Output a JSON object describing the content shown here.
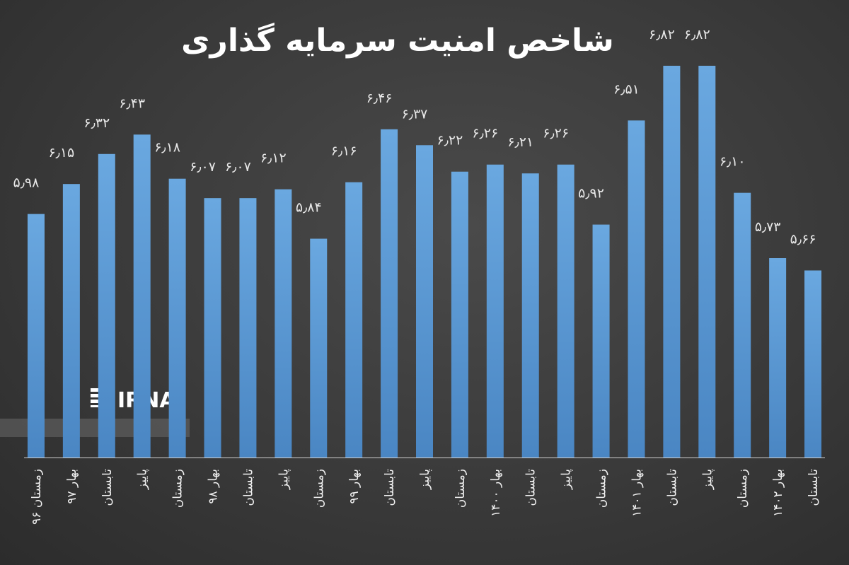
{
  "chart_data": {
    "type": "bar",
    "title": "شاخص امنیت سرمایه گذاری",
    "categories": [
      "زمستان ۹۶",
      "بهار ۹۷",
      "تابستان",
      "پاییز",
      "زمستان",
      "بهار ۹۸",
      "تابستان",
      "پاییز",
      "زمستان",
      "بهار ۹۹",
      "تابستان",
      "پاییز",
      "زمستان",
      "بهار ۱۴۰۰",
      "تابستان",
      "پاییز",
      "زمستان",
      "بهار ۱۴۰۱",
      "تابستان",
      "پاییز",
      "زمستان",
      "بهار ۱۴۰۲",
      "تابستان"
    ],
    "values": [
      5.98,
      6.15,
      6.32,
      6.43,
      6.18,
      6.07,
      6.07,
      6.12,
      5.84,
      6.16,
      6.46,
      6.37,
      6.22,
      6.26,
      6.21,
      6.26,
      5.92,
      6.51,
      6.82,
      6.82,
      6.1,
      5.73,
      5.66
    ],
    "value_labels": [
      "۵٫۹۸",
      "۶٫۱۵",
      "۶٫۳۲",
      "۶٫۴۳",
      "۶٫۱۸",
      "۶٫۰۷",
      "۶٫۰۷",
      "۶٫۱۲",
      "۵٫۸۴",
      "۶٫۱۶",
      "۶٫۴۶",
      "۶٫۳۷",
      "۶٫۲۲",
      "۶٫۲۶",
      "۶٫۲۱",
      "۶٫۲۶",
      "۵٫۹۲",
      "۶٫۵۱",
      "۶٫۸۲",
      "۶٫۸۲",
      "۶٫۱۰",
      "۵٫۷۳",
      "۵٫۶۶"
    ],
    "xlabel": "",
    "ylabel": "",
    "ylim": [
      4.6,
      6.82
    ],
    "grid": false,
    "legend": "none",
    "bar_color": "#5b9bd5"
  },
  "watermark": {
    "text": "IRNA"
  },
  "colors": {
    "background": "#3a3a3a",
    "bar_top": "#6aa8e0",
    "bar_bottom": "#4a86c3",
    "text": "#ffffff"
  }
}
